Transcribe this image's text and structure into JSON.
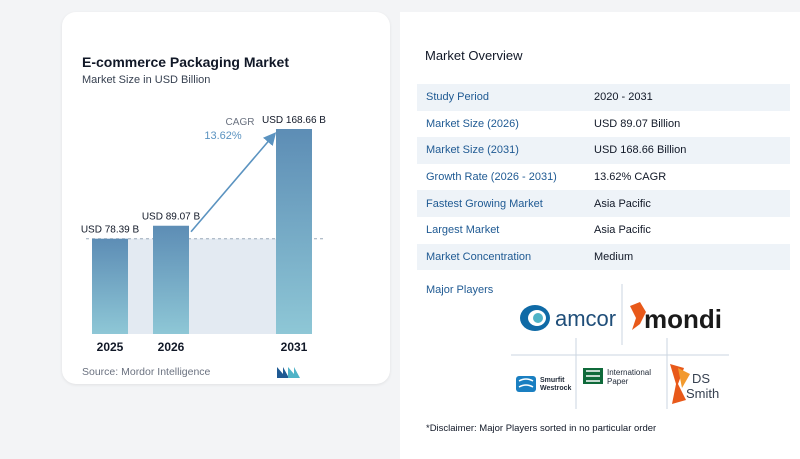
{
  "chart": {
    "title": "E-commerce Packaging Market",
    "subtitle": "Market Size in USD Billion",
    "source": "Source:  Mordor Intelligence",
    "cagr_label": "CAGR",
    "cagr_value": "13.62%"
  },
  "chart_data": {
    "type": "bar",
    "categories": [
      "2025",
      "2026",
      "2031"
    ],
    "values": [
      78.39,
      89.07,
      168.66
    ],
    "data_labels": [
      "USD 78.39 B",
      "USD 89.07 B",
      "USD 168.66 B"
    ],
    "title": "E-commerce Packaging Market",
    "subtitle": "Market Size in USD Billion",
    "ylim": [
      0,
      168.66
    ],
    "grid": false,
    "colors": {
      "bar_top": "#5d8db5",
      "bar_bottom": "#8ec7d6",
      "arrow": "#5b93c0",
      "shade": "#e3eaf2"
    }
  },
  "overview": {
    "title": "Market Overview",
    "rows": [
      {
        "label": "Study Period",
        "value": "2020 - 2031"
      },
      {
        "label": "Market Size (2026)",
        "value": "USD 89.07 Billion"
      },
      {
        "label": "Market Size (2031)",
        "value": "USD 168.66 Billion"
      },
      {
        "label": "Growth Rate (2026 - 2031)",
        "value": "13.62% CAGR"
      },
      {
        "label": "Fastest Growing Market",
        "value": "Asia Pacific"
      },
      {
        "label": "Largest Market",
        "value": "Asia Pacific"
      },
      {
        "label": "Market Concentration",
        "value": "Medium"
      }
    ]
  },
  "players": {
    "title": "Major Players",
    "logos": {
      "amcor": "amcor",
      "mondi": "mondi",
      "smurfit_line1": "Smurfit",
      "smurfit_line2": "Westrock",
      "ip_line1": "International",
      "ip_line2": "Paper",
      "ds_line1": "DS",
      "ds_line2": "Smith"
    },
    "disclaimer": "*Disclaimer: Major Players sorted in no particular order"
  }
}
